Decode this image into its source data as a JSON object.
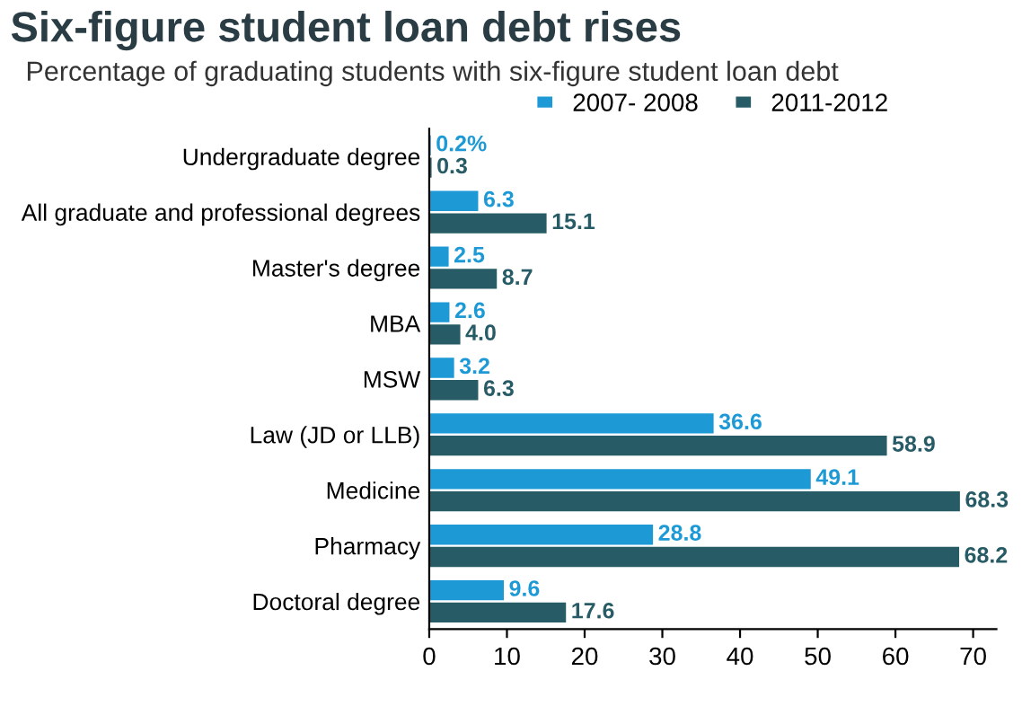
{
  "chart_data": {
    "type": "bar",
    "orientation": "horizontal",
    "title": "Six-figure student loan debt rises",
    "subtitle": "Percentage of graduating students with six-figure student loan debt",
    "categories": [
      "Undergraduate degree",
      "All graduate and professional degrees",
      "Master's degree",
      "MBA",
      "MSW",
      "Law (JD or LLB)",
      "Medicine",
      "Pharmacy",
      "Doctoral degree"
    ],
    "series": [
      {
        "name": "2007- 2008",
        "color": "#1d9ad6",
        "values": [
          0.2,
          6.3,
          2.5,
          2.6,
          3.2,
          36.6,
          49.1,
          28.8,
          9.6
        ],
        "value_labels": [
          "0.2%",
          "6.3",
          "2.5",
          "2.6",
          "3.2",
          "36.6",
          "49.1",
          "28.8",
          "9.6"
        ]
      },
      {
        "name": "2011-2012",
        "color": "#275c66",
        "values": [
          0.3,
          15.1,
          8.7,
          4.0,
          6.3,
          58.9,
          68.3,
          68.2,
          17.6
        ],
        "value_labels": [
          "0.3",
          "15.1",
          "8.7",
          "4.0",
          "6.3",
          "58.9",
          "68.3",
          "68.2",
          "17.6"
        ]
      }
    ],
    "xlim": [
      0,
      73
    ],
    "xticks": [
      0,
      10,
      20,
      30,
      40,
      50,
      60,
      70
    ],
    "grid": false,
    "legend": "top"
  }
}
